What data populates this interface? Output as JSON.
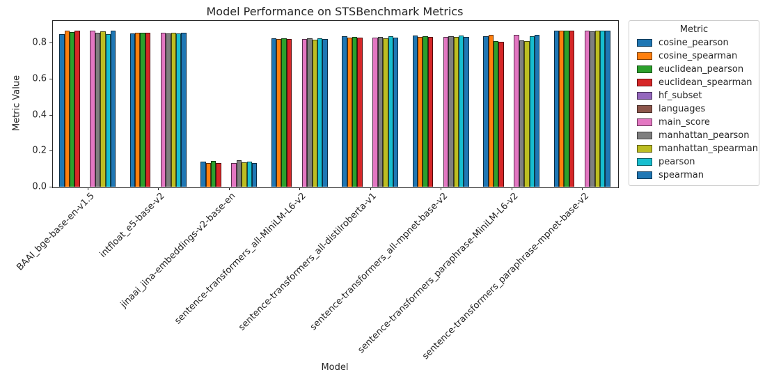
{
  "chart_data": {
    "type": "bar",
    "title": "Model Performance on STSBenchmark Metrics",
    "xlabel": "Model",
    "ylabel": "Metric Value",
    "ylim": [
      0,
      0.925
    ],
    "yticks": [
      0.0,
      0.2,
      0.4,
      0.6,
      0.8
    ],
    "grid": false,
    "x_tick_rotation_deg": 45,
    "legend": {
      "title": "Metric",
      "position": "outside right"
    },
    "categories": [
      "BAAI_bge-base-en-v1.5",
      "intfloat_e5-base-v2",
      "jinaai_jina-embeddings-v2-base-en",
      "sentence-transformers_all-MiniLM-L6-v2",
      "sentence-transformers_all-distilroberta-v1",
      "sentence-transformers_all-mpnet-base-v2",
      "sentence-transformers_paraphrase-MiniLM-L6-v2",
      "sentence-transformers_paraphrase-mpnet-base-v2"
    ],
    "series": [
      {
        "name": "cosine_pearson",
        "color": "#1f77b4",
        "values": [
          0.848,
          0.852,
          0.14,
          0.823,
          0.835,
          0.838,
          0.836,
          0.866
        ]
      },
      {
        "name": "cosine_spearman",
        "color": "#ff7f0e",
        "values": [
          0.866,
          0.856,
          0.13,
          0.82,
          0.828,
          0.834,
          0.842,
          0.868
        ]
      },
      {
        "name": "euclidean_pearson",
        "color": "#2ca02c",
        "values": [
          0.858,
          0.854,
          0.145,
          0.826,
          0.831,
          0.836,
          0.81,
          0.867
        ]
      },
      {
        "name": "euclidean_spearman",
        "color": "#d62728",
        "values": [
          0.866,
          0.856,
          0.13,
          0.82,
          0.827,
          0.833,
          0.806,
          0.866
        ]
      },
      {
        "name": "hf_subset",
        "color": "#9467bd",
        "values": [
          null,
          null,
          null,
          null,
          null,
          null,
          null,
          null
        ]
      },
      {
        "name": "languages",
        "color": "#8c564b",
        "values": [
          null,
          null,
          null,
          null,
          null,
          null,
          null,
          null
        ]
      },
      {
        "name": "main_score",
        "color": "#e377c2",
        "values": [
          0.866,
          0.856,
          0.132,
          0.82,
          0.828,
          0.834,
          0.842,
          0.868
        ]
      },
      {
        "name": "manhattan_pearson",
        "color": "#7f7f7f",
        "values": [
          0.857,
          0.853,
          0.146,
          0.823,
          0.832,
          0.836,
          0.811,
          0.865
        ]
      },
      {
        "name": "manhattan_spearman",
        "color": "#bcbd22",
        "values": [
          0.864,
          0.855,
          0.134,
          0.818,
          0.825,
          0.831,
          0.807,
          0.866
        ]
      },
      {
        "name": "pearson",
        "color": "#17becf",
        "values": [
          0.848,
          0.852,
          0.141,
          0.824,
          0.836,
          0.839,
          0.836,
          0.866
        ]
      },
      {
        "name": "spearman",
        "color": "#1f77b4",
        "values": [
          0.866,
          0.856,
          0.131,
          0.82,
          0.829,
          0.834,
          0.842,
          0.868
        ]
      }
    ]
  }
}
